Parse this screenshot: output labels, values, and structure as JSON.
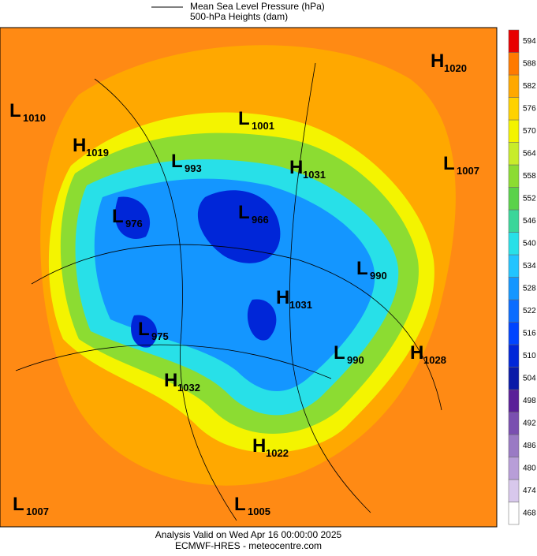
{
  "header": {
    "line_label": "Mean Sea Level Pressure (hPa)",
    "fill_label": "500-hPa Heights (dam)"
  },
  "centers": [
    {
      "kind": "L",
      "value": 1010
    },
    {
      "kind": "H",
      "value": 1019
    },
    {
      "kind": "L",
      "value": 993
    },
    {
      "kind": "L",
      "value": 1001
    },
    {
      "kind": "H",
      "value": 1020
    },
    {
      "kind": "H",
      "value": 1031
    },
    {
      "kind": "L",
      "value": 1007
    },
    {
      "kind": "L",
      "value": 976
    },
    {
      "kind": "L",
      "value": 966
    },
    {
      "kind": "L",
      "value": 990
    },
    {
      "kind": "H",
      "value": 1031
    },
    {
      "kind": "L",
      "value": 975
    },
    {
      "kind": "L",
      "value": 990
    },
    {
      "kind": "H",
      "value": 1028
    },
    {
      "kind": "H",
      "value": 1032
    },
    {
      "kind": "H",
      "value": 1022
    },
    {
      "kind": "L",
      "value": 1007
    },
    {
      "kind": "L",
      "value": 1005
    }
  ],
  "colorbar": {
    "levels": [
      468,
      474,
      480,
      486,
      492,
      498,
      504,
      510,
      516,
      522,
      528,
      534,
      540,
      546,
      552,
      558,
      564,
      570,
      576,
      582,
      588,
      594
    ],
    "colors": [
      "#ffffff",
      "#d8c8ec",
      "#b89ed8",
      "#9a7ac4",
      "#7a4fb0",
      "#5a1f98",
      "#0a1aa8",
      "#0026d8",
      "#0044ff",
      "#0a6cff",
      "#1496ff",
      "#22c4ff",
      "#28e0e8",
      "#3ad69a",
      "#5ad24a",
      "#8cdc32",
      "#c8ec2a",
      "#f4f400",
      "#ffd200",
      "#ffa800",
      "#ff7a00",
      "#e80000"
    ]
  },
  "footer": {
    "valid": "Analysis Valid on Wed Apr 16 00:00:00 2025",
    "source": "ECMWF-HRES  - meteocentre.com"
  }
}
